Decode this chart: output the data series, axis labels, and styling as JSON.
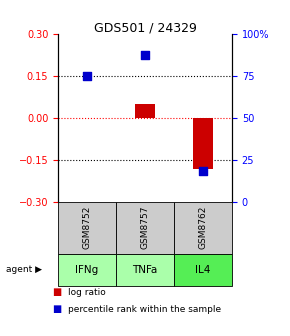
{
  "title": "GDS501 / 24329",
  "samples": [
    "GSM8752",
    "GSM8757",
    "GSM8762"
  ],
  "agents": [
    "IFNg",
    "TNFa",
    "IL4"
  ],
  "log_ratios": [
    0.0,
    0.05,
    -0.185
  ],
  "percentile_ranks": [
    75.0,
    87.0,
    18.0
  ],
  "ylim_left": [
    -0.3,
    0.3
  ],
  "ylim_right": [
    0,
    100
  ],
  "left_ticks": [
    -0.3,
    -0.15,
    0,
    0.15,
    0.3
  ],
  "right_ticks": [
    0,
    25,
    50,
    75,
    100
  ],
  "right_tick_labels": [
    "0",
    "25",
    "50",
    "75",
    "100%"
  ],
  "dotted_lines_black": [
    -0.15,
    0.15
  ],
  "dotted_line_red": 0.0,
  "bar_color": "#cc0000",
  "point_color": "#0000cc",
  "agent_colors": [
    "#aaffaa",
    "#aaffaa",
    "#55ee55"
  ],
  "sample_bg_color": "#cccccc",
  "bar_width": 0.35,
  "point_size": 40,
  "title_fontsize": 9,
  "tick_fontsize": 7,
  "label_fontsize": 7,
  "legend_fontsize": 6.5
}
